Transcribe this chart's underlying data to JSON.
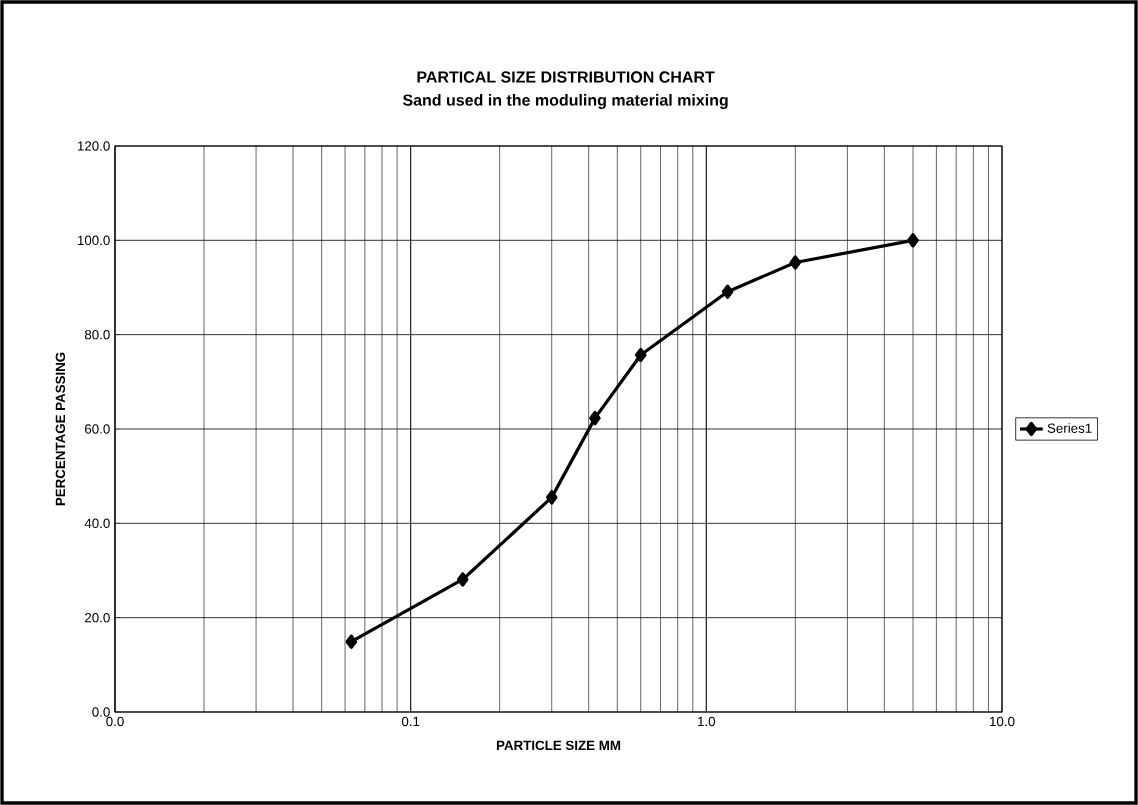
{
  "chart_data": {
    "type": "line",
    "title": "PARTICAL SIZE DISTRIBUTION CHART",
    "subtitle": "Sand used in the moduling material mixing",
    "xlabel": "PARTICLE SIZE MM",
    "ylabel": "PERCENTAGE PASSING",
    "series": [
      {
        "name": "Series1",
        "color": "#000000",
        "x": [
          0.063,
          0.15,
          0.3,
          0.42,
          0.6,
          1.18,
          2.0,
          5.0
        ],
        "values": [
          14.9,
          28.1,
          45.5,
          62.3,
          75.7,
          89.1,
          95.3,
          100.0
        ]
      }
    ],
    "log": "x",
    "xlim": [
      0.01,
      10
    ],
    "ylim": [
      0,
      120
    ],
    "xticks": [
      {
        "value": 0.01,
        "label": "0.0"
      },
      {
        "value": 0.1,
        "label": "0.1"
      },
      {
        "value": 1,
        "label": "1.0"
      },
      {
        "value": 10,
        "label": "10.0"
      }
    ],
    "yticks": [
      {
        "value": 0,
        "label": "0.0"
      },
      {
        "value": 20,
        "label": "20.0"
      },
      {
        "value": 40,
        "label": "40.0"
      },
      {
        "value": 60,
        "label": "60.0"
      },
      {
        "value": 80,
        "label": "80.0"
      },
      {
        "value": 100,
        "label": "100.0"
      },
      {
        "value": 120,
        "label": "120.0"
      }
    ],
    "grid": true,
    "legend": "right",
    "marker": "diamond",
    "line_style": "solid"
  }
}
